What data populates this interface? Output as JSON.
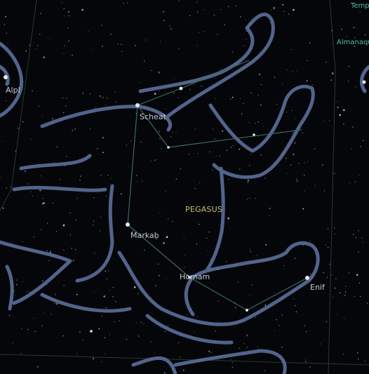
{
  "constellation": {
    "name": "PEGASUS"
  },
  "stars": {
    "scheat": "Scheat",
    "markab": "Markab",
    "homam": "Homam",
    "enif": "Enif",
    "alpheratz_partial": "Alpl"
  },
  "offscreen_labels": {
    "top_right": "Temp",
    "right": "Almanaqu"
  },
  "colors": {
    "sky": "#04060a",
    "figure_outline": "#5b6f9a",
    "constellation_line": "#3f6a5a",
    "constellation_label": "#c9c06a",
    "star_label": "#c8ccd4",
    "far_label": "#4cc38a"
  }
}
